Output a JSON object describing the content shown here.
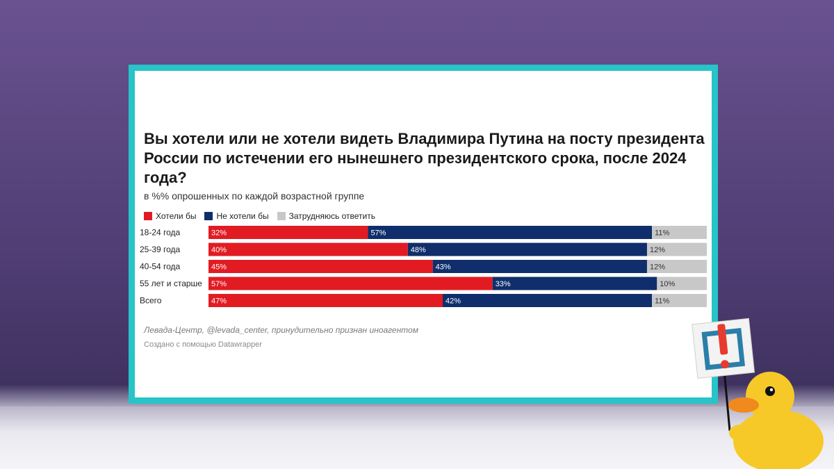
{
  "chart_data": {
    "type": "bar",
    "stacked": true,
    "orientation": "horizontal",
    "title": "Вы хотели или не хотели видеть Владимира Путина на посту президента России по истечении его нынешнего президентского срока, после 2024 года?",
    "subtitle": "в %% опрошенных по каждой возрастной группе",
    "categories": [
      "18-24 года",
      "25-39 года",
      "40-54 года",
      "55 лет и старше",
      "Всего"
    ],
    "series": [
      {
        "name": "Хотели бы",
        "color": "#e21b23",
        "values": [
          32,
          40,
          45,
          57,
          47
        ],
        "labels": [
          "32%",
          "40%",
          "45%",
          "57%",
          "47%"
        ]
      },
      {
        "name": "Не хотели бы",
        "color": "#0f2e6b",
        "values": [
          57,
          48,
          43,
          33,
          42
        ],
        "labels": [
          "57%",
          "48%",
          "43%",
          "33%",
          "42%"
        ]
      },
      {
        "name": "Затрудняюсь ответить",
        "color": "#c8c8c8",
        "values": [
          11,
          12,
          12,
          10,
          11
        ],
        "labels": [
          "11%",
          "12%",
          "12%",
          "10%",
          "11%"
        ]
      }
    ],
    "legend_position": "top-left",
    "grid": false
  },
  "source": "Левада-Центр, @levada_center, принудительно признан иноагентом",
  "credit": "Создано с помощью Datawrapper",
  "mascot": {
    "sign_color": "#e63b2e",
    "frame_color": "#2b7fa8",
    "duck_color": "#f6c928"
  }
}
